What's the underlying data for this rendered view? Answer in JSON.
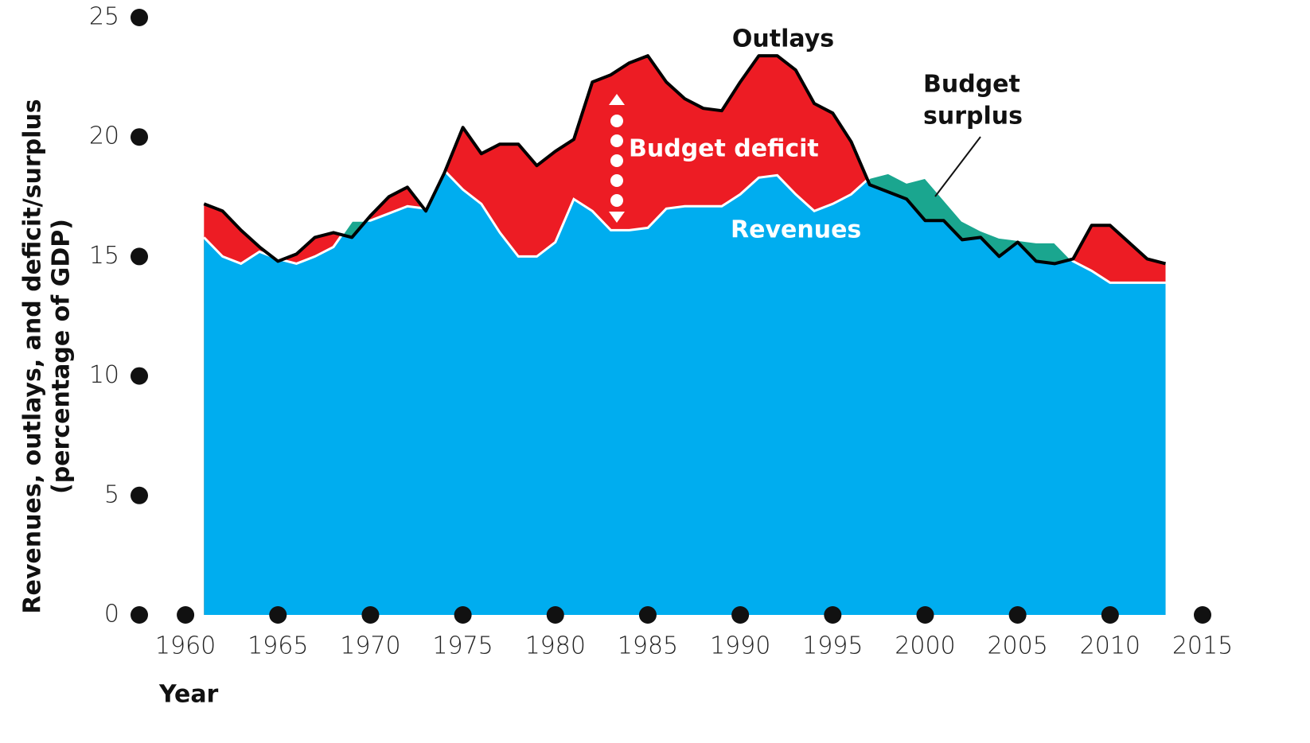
{
  "chart_data": {
    "type": "area",
    "y_label": [
      "Revenues, outlays, and deficit/surplus",
      "(percentage of GDP)"
    ],
    "x_label": "Year",
    "x": [
      1961,
      1962,
      1963,
      1964,
      1965,
      1966,
      1967,
      1968,
      1969,
      1970,
      1971,
      1972,
      1973,
      1974,
      1975,
      1976,
      1977,
      1978,
      1979,
      1980,
      1981,
      1982,
      1983,
      1984,
      1985,
      1986,
      1987,
      1988,
      1989,
      1990,
      1991,
      1992,
      1993,
      1994,
      1995,
      1996,
      1997,
      1998,
      1999,
      2000,
      2001,
      2002,
      2003,
      2004,
      2005,
      2006,
      2007,
      2008,
      2009,
      2010,
      2011,
      2012,
      2013
    ],
    "series": [
      {
        "name": "Revenues",
        "color": "#00adef",
        "values": [
          15.8,
          15.0,
          14.7,
          15.2,
          14.9,
          14.7,
          15.0,
          15.4,
          16.5,
          16.5,
          16.8,
          17.1,
          17.0,
          18.6,
          17.8,
          17.2,
          16.0,
          15.0,
          15.0,
          15.6,
          17.4,
          16.9,
          16.1,
          16.1,
          16.2,
          17.0,
          17.1,
          17.1,
          17.1,
          17.6,
          18.3,
          18.4,
          17.6,
          16.9,
          17.2,
          17.6,
          18.3,
          18.5,
          18.1,
          18.3,
          17.4,
          16.5,
          16.1,
          15.8,
          15.7,
          15.6,
          15.6,
          14.8,
          14.4,
          13.9,
          13.9,
          13.9,
          13.9
        ]
      },
      {
        "name": "Outlays",
        "color": "#000000",
        "values": [
          17.2,
          16.9,
          16.1,
          15.4,
          14.8,
          15.1,
          15.8,
          16.0,
          15.8,
          16.7,
          17.5,
          17.9,
          16.9,
          18.5,
          20.4,
          19.3,
          19.7,
          19.7,
          18.8,
          19.4,
          19.9,
          22.3,
          22.6,
          23.1,
          23.4,
          22.3,
          21.6,
          21.2,
          21.1,
          22.3,
          23.4,
          23.4,
          22.8,
          21.4,
          21.0,
          19.8,
          18.0,
          17.7,
          17.4,
          16.5,
          16.5,
          15.7,
          15.8,
          15.0,
          15.6,
          14.8,
          14.7,
          14.9,
          16.3,
          16.3,
          15.6,
          14.9,
          14.7
        ]
      }
    ],
    "deficit": {
      "label": "Budget deficit",
      "color": "#ed1c24"
    },
    "surplus": {
      "label": [
        "Budget",
        "surplus"
      ],
      "color": "#1aa68f"
    },
    "xlim": [
      1957.5,
      2015
    ],
    "xticks": [
      1960,
      1965,
      1970,
      1975,
      1980,
      1985,
      1990,
      1995,
      2000,
      2005,
      2010,
      2015
    ],
    "ylim": [
      0,
      25
    ],
    "yticks": [
      0,
      5,
      10,
      15,
      20,
      25
    ]
  }
}
